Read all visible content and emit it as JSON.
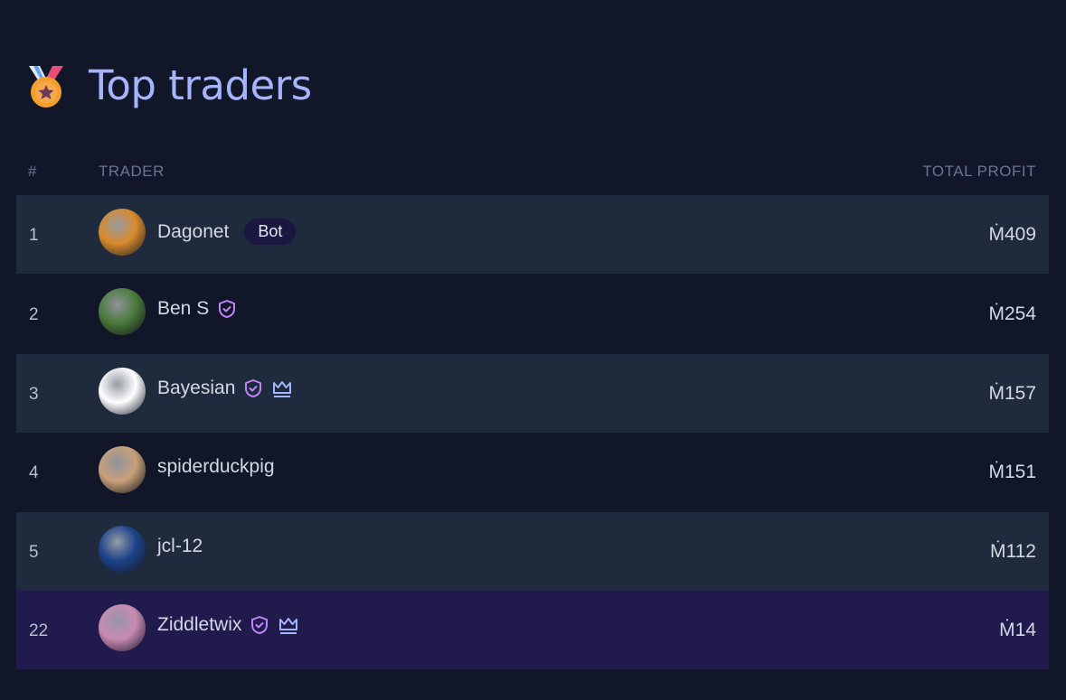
{
  "title": "Top traders",
  "columns": {
    "rank": "#",
    "trader": "TRADER",
    "profit": "TOTAL PROFIT"
  },
  "rows": [
    {
      "rank": "1",
      "name": "Dagonet",
      "badge": "Bot",
      "verified": false,
      "crown": false,
      "profit": "Ṁ409",
      "avatar_color": "#d98a2b"
    },
    {
      "rank": "2",
      "name": "Ben S",
      "verified": true,
      "crown": false,
      "profit": "Ṁ254",
      "avatar_color": "#4a7a3a"
    },
    {
      "rank": "3",
      "name": "Bayesian",
      "verified": true,
      "crown": true,
      "profit": "Ṁ157",
      "avatar_color": "#ffffff"
    },
    {
      "rank": "4",
      "name": "spiderduckpig",
      "verified": false,
      "crown": false,
      "profit": "Ṁ151",
      "avatar_color": "#c9a07a"
    },
    {
      "rank": "5",
      "name": "jcl-12",
      "verified": false,
      "crown": false,
      "profit": "Ṁ112",
      "avatar_color": "#1d428a"
    },
    {
      "rank": "22",
      "name": "Ziddletwix",
      "verified": true,
      "crown": true,
      "profit": "Ṁ14",
      "avatar_color": "#c88bb0"
    }
  ],
  "colors": {
    "verified": "#c084fc",
    "crown": "#a5b4fc",
    "highlight_row": "#201a4d"
  }
}
